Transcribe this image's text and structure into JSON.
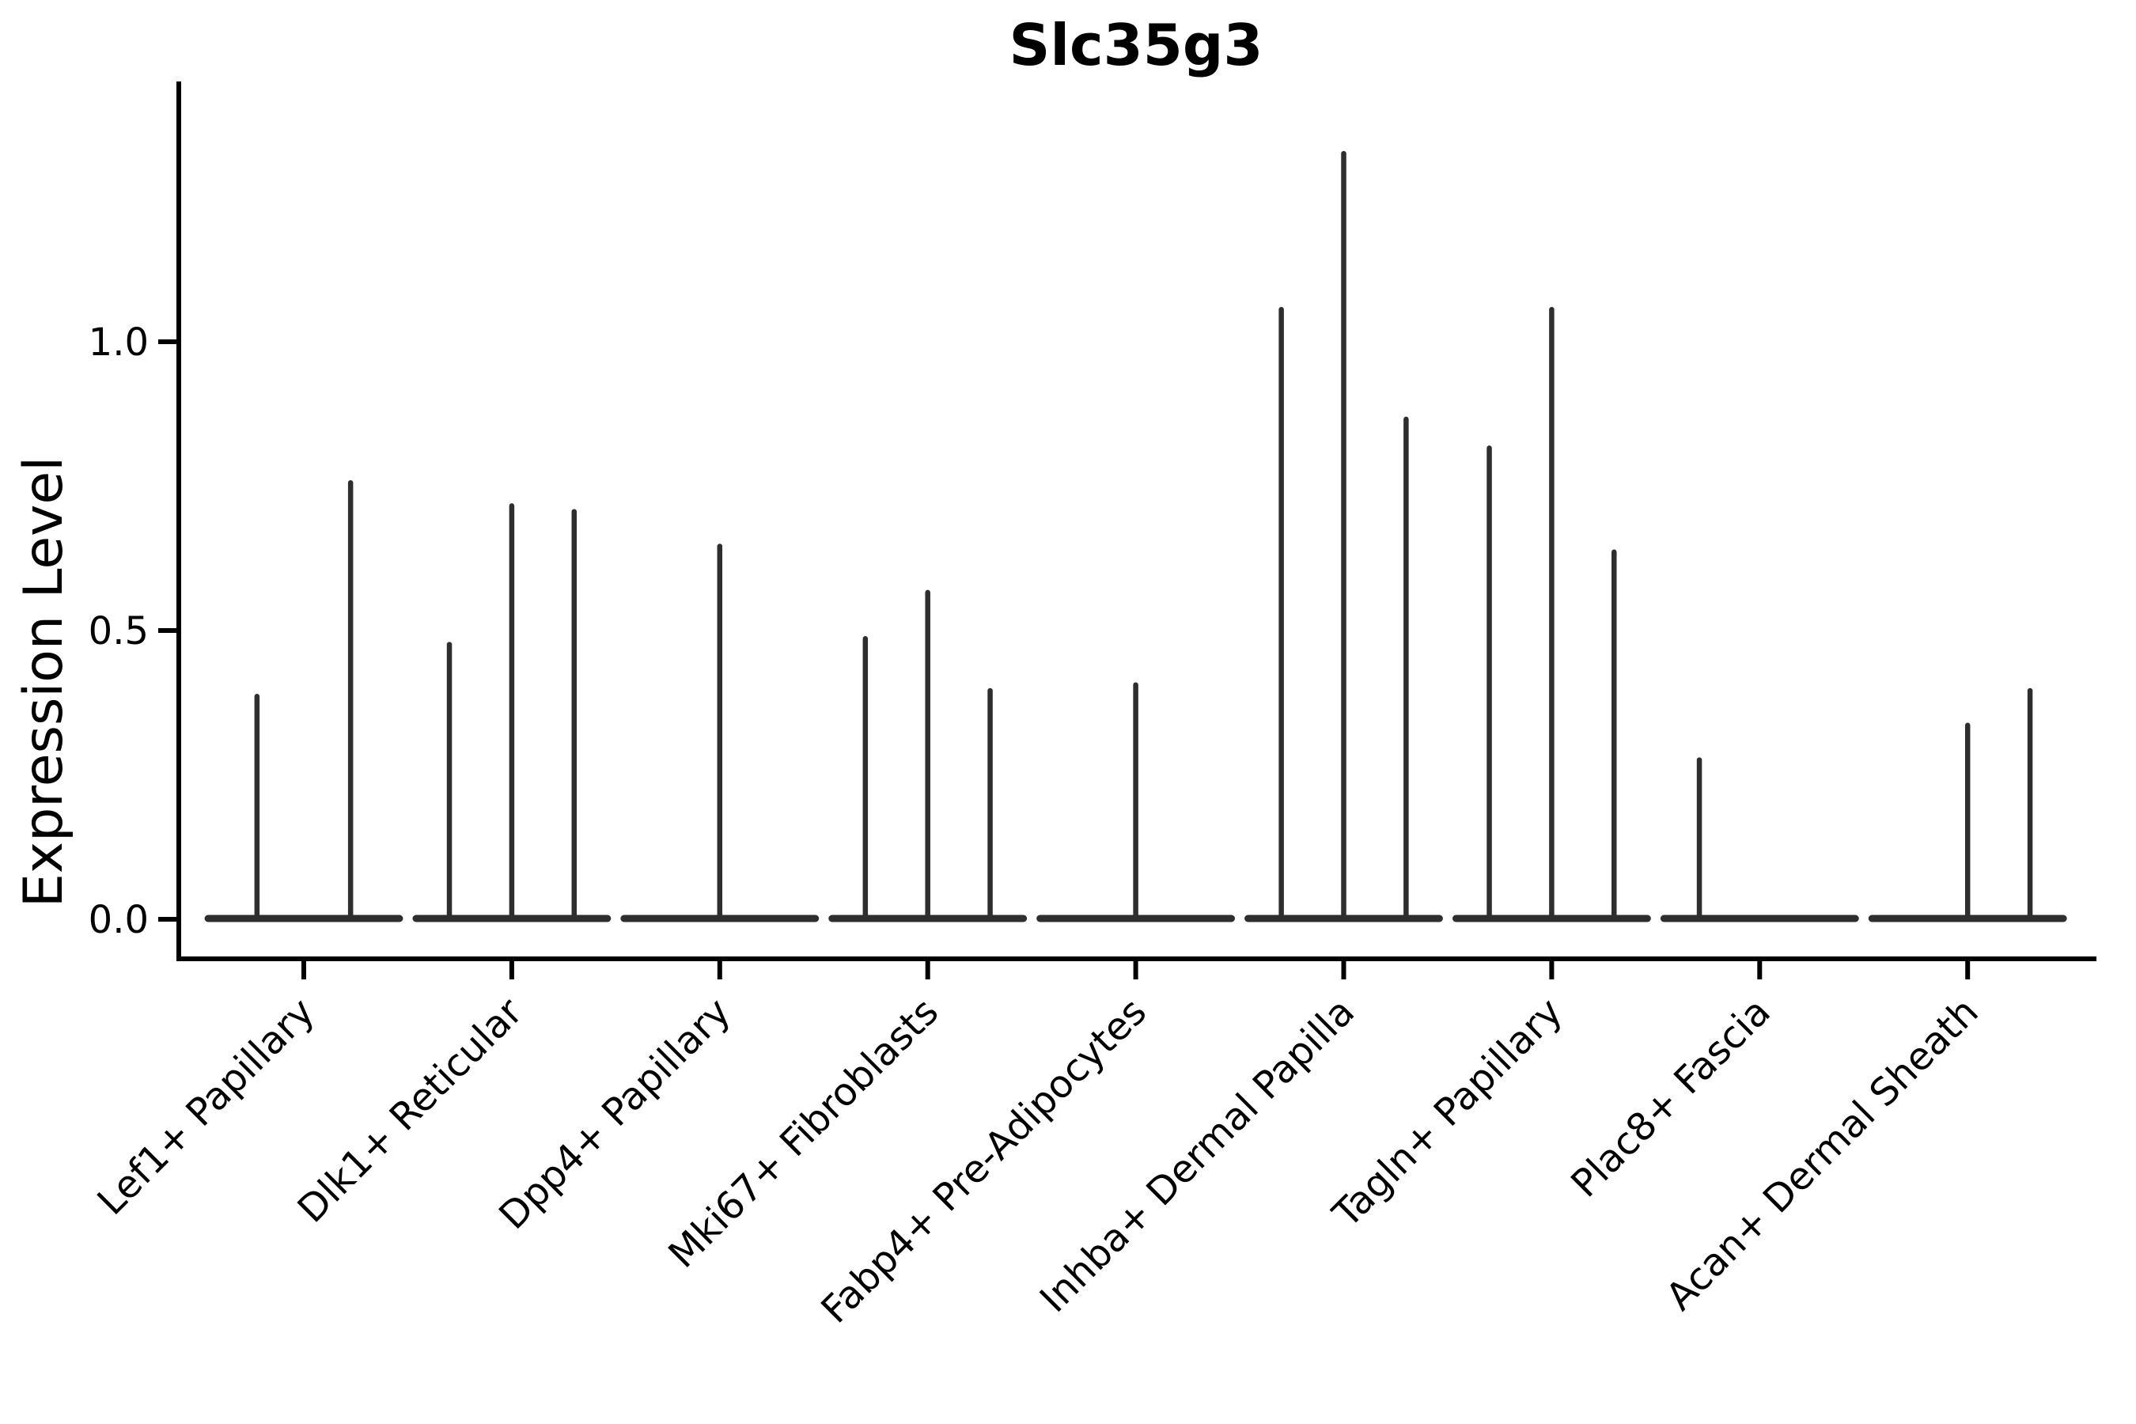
{
  "chart_data": {
    "type": "violin",
    "title": "Slc35g3",
    "xlabel": "",
    "ylabel": "Expression Level",
    "ylim": [
      0,
      1.45
    ],
    "grid": false,
    "legend": "none",
    "violin_color": "#2e2e2e",
    "axis_color": "#000000",
    "baseline_halfwidth": 0.46,
    "yticks": [
      {
        "value": 0.0,
        "label": "0.0"
      },
      {
        "value": 0.5,
        "label": "0.5"
      },
      {
        "value": 1.0,
        "label": "1.0"
      }
    ],
    "categories": [
      {
        "label": "Lef1+ Papillary",
        "violins": [
          {
            "offset": -0.225,
            "max": 0.39
          },
          {
            "offset": 0.225,
            "max": 0.76
          }
        ]
      },
      {
        "label": "Dlk1+ Reticular",
        "violins": [
          {
            "offset": -0.3,
            "max": 0.48
          },
          {
            "offset": 0.0,
            "max": 0.72
          },
          {
            "offset": 0.3,
            "max": 0.71
          }
        ]
      },
      {
        "label": "Dpp4+ Papillary",
        "violins": [
          {
            "offset": 0.0,
            "max": 0.65
          }
        ]
      },
      {
        "label": "Mki67+ Fibroblasts",
        "violins": [
          {
            "offset": -0.3,
            "max": 0.49
          },
          {
            "offset": 0.0,
            "max": 0.57
          },
          {
            "offset": 0.3,
            "max": 0.4
          }
        ]
      },
      {
        "label": "Fabp4+ Pre-Adipocytes",
        "violins": [
          {
            "offset": 0.0,
            "max": 0.41
          }
        ]
      },
      {
        "label": "Inhba+ Dermal Papilla",
        "violins": [
          {
            "offset": -0.3,
            "max": 1.06
          },
          {
            "offset": 0.0,
            "max": 1.33
          },
          {
            "offset": 0.3,
            "max": 0.87
          }
        ]
      },
      {
        "label": "Tagln+ Papillary",
        "violins": [
          {
            "offset": -0.3,
            "max": 0.82
          },
          {
            "offset": 0.0,
            "max": 1.06
          },
          {
            "offset": 0.3,
            "max": 0.64
          }
        ]
      },
      {
        "label": "Plac8+ Fascia",
        "violins": [
          {
            "offset": -0.29,
            "max": 0.28
          }
        ]
      },
      {
        "label": "Acan+ Dermal Sheath",
        "violins": [
          {
            "offset": 0.0,
            "max": 0.34
          },
          {
            "offset": 0.3,
            "max": 0.4
          }
        ]
      }
    ]
  }
}
